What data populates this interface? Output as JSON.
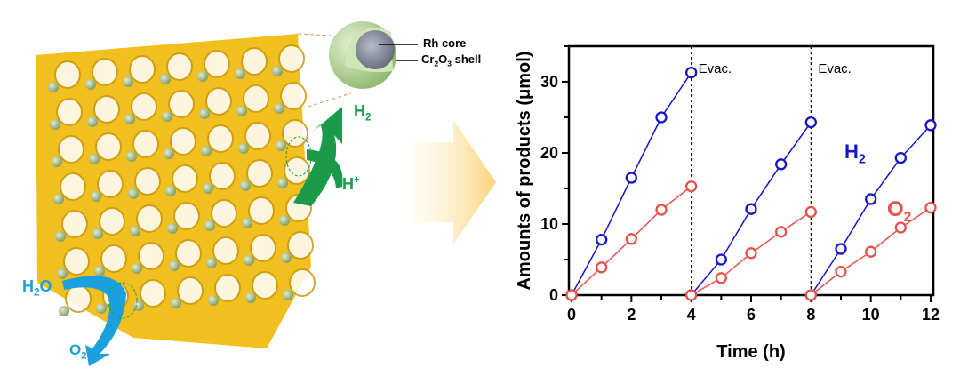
{
  "illustration": {
    "core_label": "Rh core",
    "shell_label_parts": [
      "Cr",
      "2",
      "O",
      "3",
      " shell"
    ],
    "h2_label": [
      "H",
      "2"
    ],
    "hplus_label": [
      "H",
      "+"
    ],
    "h2o_label": [
      "H",
      "2",
      "O"
    ],
    "o2_label": [
      "O",
      "2"
    ],
    "colors": {
      "lattice": "#f2c01e",
      "particle": "#a9c98a",
      "h2_arrow": "#1a9a4a",
      "water_arrow": "#1aa0dc",
      "core": "#8a8e9c"
    }
  },
  "chart_data": {
    "type": "line",
    "xlabel": "Time (h)",
    "ylabel": "Amounts of products (μmol)",
    "xlim": [
      0,
      12
    ],
    "ylim": [
      0,
      35
    ],
    "xticks": [
      "0",
      "2",
      "4",
      "6",
      "8",
      "10",
      "12"
    ],
    "yticks": [
      "0",
      "10",
      "20",
      "30"
    ],
    "grid": false,
    "annotations": [
      {
        "text": "Evac.",
        "x": 4
      },
      {
        "text": "Evac.",
        "x": 8
      }
    ],
    "series": [
      {
        "name": "H2",
        "label_parts": [
          "H",
          "2"
        ],
        "color": "#1414c8",
        "segments": [
          [
            [
              0,
              0
            ],
            [
              1,
              7.8
            ],
            [
              2,
              16.5
            ],
            [
              3,
              25.0
            ],
            [
              4,
              31.3
            ]
          ],
          [
            [
              4,
              0
            ],
            [
              5,
              5.0
            ],
            [
              6,
              12.1
            ],
            [
              7,
              18.4
            ],
            [
              8,
              24.3
            ]
          ],
          [
            [
              8,
              0
            ],
            [
              9,
              6.5
            ],
            [
              10,
              13.5
            ],
            [
              11,
              19.3
            ],
            [
              12,
              23.9
            ]
          ]
        ]
      },
      {
        "name": "O2",
        "label_parts": [
          "O",
          "2"
        ],
        "color": "#e8504a",
        "segments": [
          [
            [
              0,
              0
            ],
            [
              1,
              3.9
            ],
            [
              2,
              7.9
            ],
            [
              3,
              12.0
            ],
            [
              4,
              15.3
            ]
          ],
          [
            [
              4,
              0
            ],
            [
              5,
              2.4
            ],
            [
              6,
              5.9
            ],
            [
              7,
              8.9
            ],
            [
              8,
              11.7
            ]
          ],
          [
            [
              8,
              0
            ],
            [
              9,
              3.3
            ],
            [
              10,
              6.1
            ],
            [
              11,
              9.5
            ],
            [
              12,
              12.3
            ]
          ]
        ]
      }
    ]
  }
}
